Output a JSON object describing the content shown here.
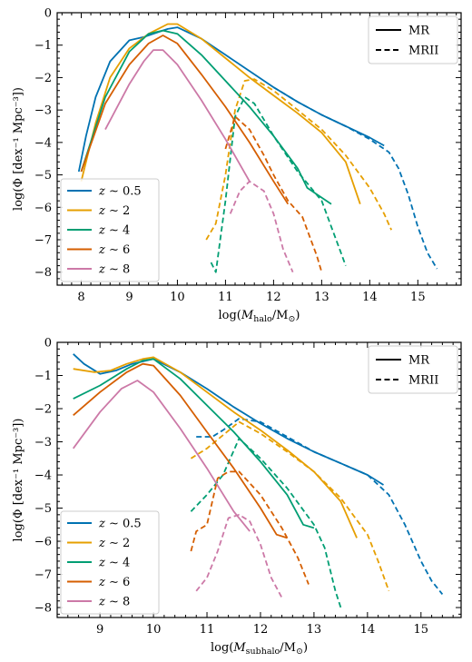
{
  "chart_data": [
    {
      "type": "line",
      "xlabel": "log(M_halo/M_⊙)",
      "ylabel": "log(Φ [dex⁻¹ Mpc⁻³])",
      "xlim": [
        7.5,
        15.9
      ],
      "ylim": [
        -8.4,
        0
      ],
      "xticks": [
        8,
        9,
        10,
        11,
        12,
        13,
        14,
        15
      ],
      "yticks": [
        0,
        -1,
        -2,
        -3,
        -4,
        -5,
        -6,
        -7,
        -8
      ],
      "legend_redshift": {
        "placement": "lower-left",
        "entries": [
          "z ∼ 0.5",
          "z ∼ 2",
          "z ∼ 4",
          "z ∼ 6",
          "z ∼ 8"
        ]
      },
      "legend_simulation": {
        "placement": "top-right",
        "entries": [
          {
            "label": "MR",
            "style": "solid"
          },
          {
            "label": "MRII",
            "style": "dashed"
          }
        ]
      },
      "series": [
        {
          "name": "z ∼ 0.5",
          "simulation": "MR",
          "color": "#0072B2",
          "style": "solid",
          "x": [
            7.95,
            8.1,
            8.3,
            8.6,
            9.0,
            9.3,
            9.6,
            9.8,
            10.0,
            10.5,
            11.0,
            11.5,
            12.0,
            12.5,
            13.0,
            13.5,
            14.0,
            14.3
          ],
          "y": [
            -4.9,
            -3.8,
            -2.6,
            -1.5,
            -0.85,
            -0.75,
            -0.6,
            -0.5,
            -0.45,
            -0.8,
            -1.3,
            -1.8,
            -2.3,
            -2.75,
            -3.15,
            -3.5,
            -3.85,
            -4.1
          ]
        },
        {
          "name": "z ∼ 0.5",
          "simulation": "MRII",
          "color": "#0072B2",
          "style": "dashed",
          "x": [
            12.0,
            12.5,
            13.0,
            13.5,
            14.0,
            14.4,
            14.6,
            14.8,
            15.0,
            15.2,
            15.4
          ],
          "y": [
            -2.3,
            -2.75,
            -3.15,
            -3.5,
            -3.9,
            -4.3,
            -4.8,
            -5.6,
            -6.6,
            -7.4,
            -7.9
          ]
        },
        {
          "name": "z ∼ 2",
          "simulation": "MR",
          "color": "#E69F00",
          "style": "solid",
          "x": [
            8.0,
            8.3,
            8.6,
            9.0,
            9.4,
            9.8,
            10.0,
            10.5,
            11.0,
            11.5,
            12.0,
            12.5,
            13.0,
            13.5,
            13.8
          ],
          "y": [
            -5.2,
            -3.4,
            -2.0,
            -1.1,
            -0.65,
            -0.35,
            -0.35,
            -0.8,
            -1.4,
            -2.0,
            -2.55,
            -3.1,
            -3.7,
            -4.6,
            -5.9
          ]
        },
        {
          "name": "z ∼ 2",
          "simulation": "MRII",
          "color": "#E69F00",
          "style": "dashed",
          "x": [
            10.6,
            10.8,
            11.0,
            11.2,
            11.4,
            11.6,
            12.0,
            12.5,
            13.0,
            13.5,
            14.0,
            14.3,
            14.45
          ],
          "y": [
            -7.0,
            -6.5,
            -5.0,
            -3.0,
            -2.1,
            -2.05,
            -2.4,
            -3.0,
            -3.6,
            -4.4,
            -5.4,
            -6.2,
            -6.7
          ]
        },
        {
          "name": "z ∼ 4",
          "simulation": "MR",
          "color": "#009E73",
          "style": "solid",
          "x": [
            8.0,
            8.5,
            9.0,
            9.4,
            9.7,
            10.0,
            10.5,
            11.0,
            11.5,
            12.0,
            12.5,
            12.7,
            13.0,
            13.2
          ],
          "y": [
            -4.9,
            -2.6,
            -1.2,
            -0.65,
            -0.55,
            -0.65,
            -1.3,
            -2.1,
            -2.9,
            -3.8,
            -4.8,
            -5.4,
            -5.7,
            -5.9
          ]
        },
        {
          "name": "z ∼ 4",
          "simulation": "MRII",
          "color": "#009E73",
          "style": "dashed",
          "x": [
            10.7,
            10.8,
            11.0,
            11.2,
            11.4,
            11.6,
            12.0,
            12.5,
            13.0,
            13.3,
            13.5
          ],
          "y": [
            -7.7,
            -8.0,
            -5.8,
            -3.2,
            -2.6,
            -2.8,
            -3.8,
            -4.9,
            -5.8,
            -7.0,
            -7.8
          ]
        },
        {
          "name": "z ∼ 6",
          "simulation": "MR",
          "color": "#D55E00",
          "style": "solid",
          "x": [
            8.0,
            8.5,
            9.0,
            9.4,
            9.7,
            10.0,
            10.5,
            11.0,
            11.5,
            12.0,
            12.3
          ],
          "y": [
            -4.9,
            -2.8,
            -1.6,
            -0.95,
            -0.7,
            -0.95,
            -1.9,
            -2.9,
            -4.0,
            -5.2,
            -5.9
          ]
        },
        {
          "name": "z ∼ 6",
          "simulation": "MRII",
          "color": "#D55E00",
          "style": "dashed",
          "x": [
            11.0,
            11.2,
            11.5,
            11.8,
            12.0,
            12.3,
            12.6,
            12.9,
            13.0
          ],
          "y": [
            -4.2,
            -3.2,
            -3.6,
            -4.4,
            -5.0,
            -5.8,
            -6.3,
            -7.5,
            -8.0
          ]
        },
        {
          "name": "z ∼ 8",
          "simulation": "MR",
          "color": "#CC79A7",
          "style": "solid",
          "x": [
            8.5,
            9.0,
            9.3,
            9.5,
            9.7,
            10.0,
            10.5,
            11.0,
            11.5
          ],
          "y": [
            -3.6,
            -2.2,
            -1.5,
            -1.15,
            -1.15,
            -1.6,
            -2.7,
            -3.9,
            -5.2
          ]
        },
        {
          "name": "z ∼ 8",
          "simulation": "MRII",
          "color": "#CC79A7",
          "style": "dashed",
          "x": [
            11.1,
            11.3,
            11.5,
            11.8,
            12.0,
            12.2,
            12.4
          ],
          "y": [
            -6.2,
            -5.5,
            -5.2,
            -5.5,
            -6.2,
            -7.3,
            -8.0
          ]
        }
      ]
    },
    {
      "type": "line",
      "xlabel": "log(M_subhalo/M_⊙)",
      "ylabel": "log(Φ [dex⁻¹ Mpc⁻³])",
      "xlim": [
        8.2,
        15.75
      ],
      "ylim": [
        -8.3,
        0
      ],
      "xticks": [
        9,
        10,
        11,
        12,
        13,
        14,
        15
      ],
      "yticks": [
        0,
        -1,
        -2,
        -3,
        -4,
        -5,
        -6,
        -7,
        -8
      ],
      "legend_redshift": {
        "placement": "lower-left",
        "entries": [
          "z ∼ 0.5",
          "z ∼ 2",
          "z ∼ 4",
          "z ∼ 6",
          "z ∼ 8"
        ]
      },
      "legend_simulation": {
        "placement": "top-right",
        "entries": [
          {
            "label": "MR",
            "style": "solid"
          },
          {
            "label": "MRII",
            "style": "dashed"
          }
        ]
      },
      "series": [
        {
          "name": "z ∼ 0.5",
          "simulation": "MR",
          "color": "#0072B2",
          "style": "solid",
          "x": [
            8.5,
            8.7,
            9.0,
            9.3,
            9.6,
            10.0,
            10.5,
            11.0,
            11.5,
            12.0,
            12.5,
            13.0,
            13.5,
            14.0,
            14.3
          ],
          "y": [
            -0.35,
            -0.65,
            -0.95,
            -0.85,
            -0.65,
            -0.5,
            -0.9,
            -1.4,
            -1.95,
            -2.45,
            -2.9,
            -3.3,
            -3.65,
            -4.0,
            -4.3
          ]
        },
        {
          "name": "z ∼ 0.5",
          "simulation": "MRII",
          "color": "#0072B2",
          "style": "dashed",
          "x": [
            10.8,
            11.1,
            11.3,
            11.6,
            12.0,
            12.5,
            13.0,
            13.5,
            14.0,
            14.4,
            14.7,
            15.0,
            15.2,
            15.4
          ],
          "y": [
            -2.85,
            -2.85,
            -2.65,
            -2.3,
            -2.4,
            -2.85,
            -3.3,
            -3.65,
            -4.0,
            -4.6,
            -5.5,
            -6.6,
            -7.2,
            -7.6
          ]
        },
        {
          "name": "z ∼ 2",
          "simulation": "MR",
          "color": "#E69F00",
          "style": "solid",
          "x": [
            8.5,
            8.9,
            9.2,
            9.5,
            9.8,
            10.0,
            10.5,
            11.0,
            11.5,
            12.0,
            12.5,
            13.0,
            13.5,
            13.8
          ],
          "y": [
            -0.8,
            -0.9,
            -0.85,
            -0.65,
            -0.5,
            -0.45,
            -0.9,
            -1.5,
            -2.1,
            -2.65,
            -3.25,
            -3.9,
            -4.8,
            -5.9
          ]
        },
        {
          "name": "z ∼ 2",
          "simulation": "MRII",
          "color": "#E69F00",
          "style": "dashed",
          "x": [
            10.7,
            11.0,
            11.3,
            11.6,
            12.0,
            12.5,
            13.0,
            13.5,
            14.0,
            14.2,
            14.4
          ],
          "y": [
            -3.5,
            -3.2,
            -2.8,
            -2.4,
            -2.75,
            -3.3,
            -3.9,
            -4.7,
            -5.8,
            -6.6,
            -7.5
          ]
        },
        {
          "name": "z ∼ 4",
          "simulation": "MR",
          "color": "#009E73",
          "style": "solid",
          "x": [
            8.5,
            9.0,
            9.5,
            9.8,
            10.0,
            10.5,
            11.0,
            11.5,
            12.0,
            12.5,
            12.8,
            13.0
          ],
          "y": [
            -1.7,
            -1.3,
            -0.8,
            -0.55,
            -0.5,
            -1.1,
            -1.9,
            -2.7,
            -3.6,
            -4.6,
            -5.5,
            -5.6
          ]
        },
        {
          "name": "z ∼ 4",
          "simulation": "MRII",
          "color": "#009E73",
          "style": "dashed",
          "x": [
            10.7,
            11.0,
            11.3,
            11.6,
            12.0,
            12.5,
            13.0,
            13.2,
            13.4,
            13.5
          ],
          "y": [
            -5.1,
            -4.6,
            -4.0,
            -2.9,
            -3.5,
            -4.4,
            -5.5,
            -6.2,
            -7.5,
            -8.0
          ]
        },
        {
          "name": "z ∼ 6",
          "simulation": "MR",
          "color": "#D55E00",
          "style": "solid",
          "x": [
            8.5,
            9.0,
            9.5,
            9.8,
            10.0,
            10.5,
            11.0,
            11.5,
            12.0,
            12.3,
            12.5
          ],
          "y": [
            -2.2,
            -1.5,
            -0.9,
            -0.65,
            -0.7,
            -1.6,
            -2.7,
            -3.8,
            -5.0,
            -5.8,
            -5.9
          ]
        },
        {
          "name": "z ∼ 6",
          "simulation": "MRII",
          "color": "#D55E00",
          "style": "dashed",
          "x": [
            10.7,
            10.8,
            11.0,
            11.2,
            11.4,
            11.6,
            12.0,
            12.4,
            12.7,
            12.9
          ],
          "y": [
            -6.3,
            -5.7,
            -5.5,
            -4.1,
            -3.9,
            -3.9,
            -4.6,
            -5.6,
            -6.5,
            -7.3
          ]
        },
        {
          "name": "z ∼ 8",
          "simulation": "MR",
          "color": "#CC79A7",
          "style": "solid",
          "x": [
            8.5,
            9.0,
            9.4,
            9.7,
            10.0,
            10.5,
            11.0,
            11.5,
            11.8
          ],
          "y": [
            -3.2,
            -2.1,
            -1.4,
            -1.15,
            -1.5,
            -2.6,
            -3.8,
            -5.1,
            -5.7
          ]
        },
        {
          "name": "z ∼ 8",
          "simulation": "MRII",
          "color": "#CC79A7",
          "style": "dashed",
          "x": [
            10.8,
            11.0,
            11.2,
            11.4,
            11.6,
            11.8,
            12.0,
            12.2,
            12.4
          ],
          "y": [
            -7.5,
            -7.1,
            -6.3,
            -5.3,
            -5.2,
            -5.4,
            -6.1,
            -7.1,
            -7.7
          ]
        }
      ]
    }
  ]
}
